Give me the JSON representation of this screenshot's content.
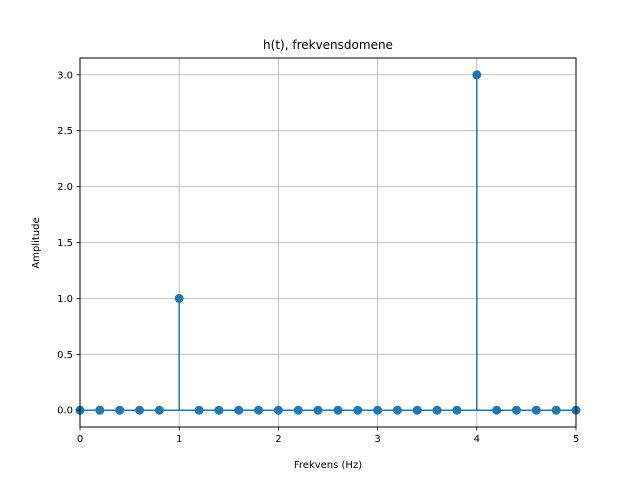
{
  "chart_data": {
    "type": "stem",
    "title": "h(t), frekvensdomene",
    "xlabel": "Frekvens (Hz)",
    "ylabel": "Amplitude",
    "x": [
      0.0,
      0.2,
      0.4,
      0.6,
      0.8,
      1.0,
      1.2,
      1.4,
      1.6,
      1.8,
      2.0,
      2.2,
      2.4,
      2.6,
      2.8,
      3.0,
      3.2,
      3.4,
      3.6,
      3.8,
      4.0,
      4.2,
      4.4,
      4.6,
      4.8,
      5.0
    ],
    "y": [
      0,
      0,
      0,
      0,
      0,
      1.0,
      0,
      0,
      0,
      0,
      0,
      0,
      0,
      0,
      0,
      0,
      0,
      0,
      0,
      0,
      3.0,
      0,
      0,
      0,
      0,
      0
    ],
    "xlim": [
      0,
      5
    ],
    "ylim": [
      -0.15,
      3.15
    ],
    "xticks": [
      0,
      1,
      2,
      3,
      4,
      5
    ],
    "xtick_labels": [
      "0",
      "1",
      "2",
      "3",
      "4",
      "5"
    ],
    "yticks": [
      0.0,
      0.5,
      1.0,
      1.5,
      2.0,
      2.5,
      3.0
    ],
    "ytick_labels": [
      "0.0",
      "0.5",
      "1.0",
      "1.5",
      "2.0",
      "2.5",
      "3.0"
    ],
    "grid": true,
    "colors": {
      "series": "#1f77b4",
      "grid": "#b0b0b0",
      "axis": "#000000"
    }
  }
}
